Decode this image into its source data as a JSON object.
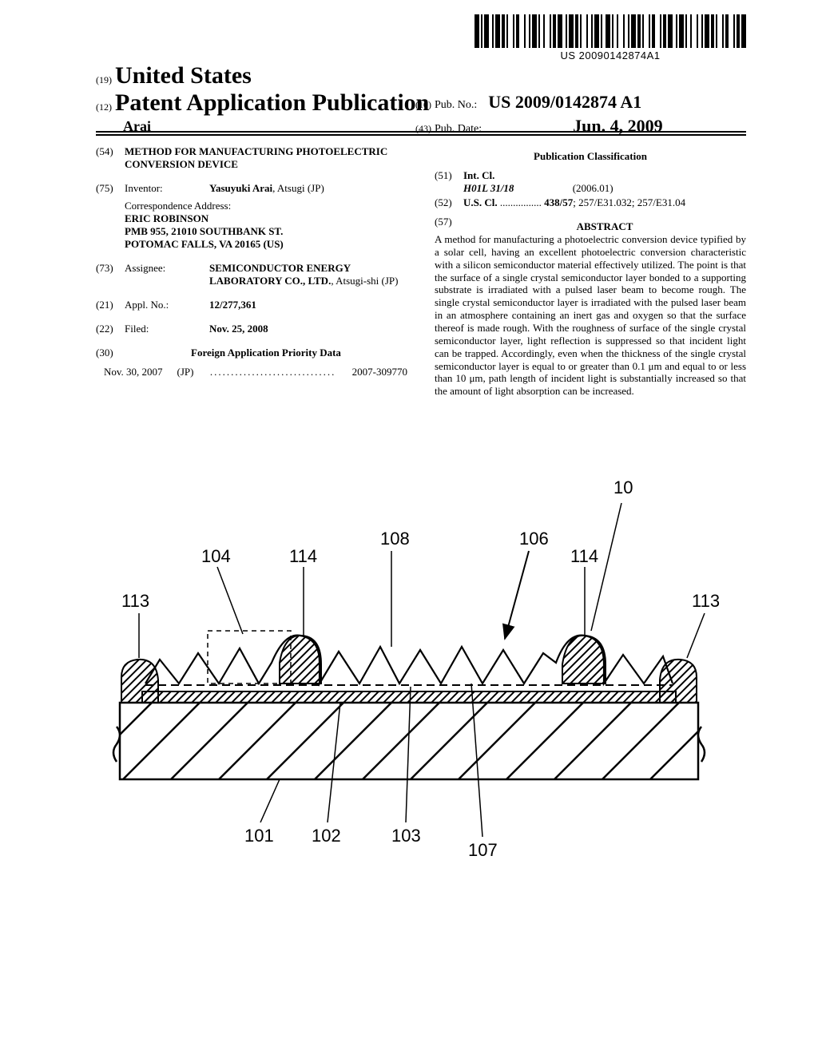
{
  "barcode": {
    "text": "US 20090142874A1",
    "pattern": [
      3,
      1,
      1,
      1,
      3,
      2,
      1,
      1,
      3,
      1,
      2,
      1,
      1,
      3,
      1,
      1,
      2,
      3,
      1,
      2,
      1,
      1,
      3,
      1,
      1,
      2,
      1,
      3,
      1,
      1,
      2,
      1,
      3,
      2,
      1,
      1,
      3,
      1,
      2,
      1,
      1,
      3,
      1,
      2,
      1,
      1,
      3,
      1,
      1,
      2,
      3,
      1,
      1,
      2,
      1,
      3,
      1,
      2,
      1,
      1,
      3,
      1,
      2,
      1,
      1,
      3,
      1,
      1,
      2,
      3,
      1,
      1,
      2,
      1,
      3,
      2,
      1,
      1,
      3,
      1,
      1,
      2,
      1,
      3,
      1,
      2,
      1,
      1,
      3,
      1,
      2,
      1,
      1,
      3,
      1,
      1,
      2,
      3,
      1,
      1,
      2,
      1,
      3
    ]
  },
  "header": {
    "code19": "(19)",
    "country": "United States",
    "code12": "(12)",
    "pub_type": "Patent Application Publication",
    "authors": "Arai",
    "code10": "(10)",
    "pubno_label": "Pub. No.:",
    "pubno": "US 2009/0142874 A1",
    "code43": "(43)",
    "pubdate_label": "Pub. Date:",
    "pubdate": "Jun. 4, 2009"
  },
  "left_col": {
    "code54": "(54)",
    "title": "METHOD FOR MANUFACTURING PHOTOELECTRIC CONVERSION DEVICE",
    "code75": "(75)",
    "inventor_label": "Inventor:",
    "inventor": "Yasuyuki Arai",
    "inventor_loc": ", Atsugi (JP)",
    "corr_label": "Correspondence Address:",
    "corr_lines": [
      "ERIC ROBINSON",
      "PMB 955, 21010 SOUTHBANK ST.",
      "POTOMAC FALLS, VA 20165 (US)"
    ],
    "code73": "(73)",
    "assignee_label": "Assignee:",
    "assignee": "SEMICONDUCTOR ENERGY LABORATORY CO., LTD.",
    "assignee_loc": ", Atsugi-shi (JP)",
    "code21": "(21)",
    "applno_label": "Appl. No.:",
    "applno": "12/277,361",
    "code22": "(22)",
    "filed_label": "Filed:",
    "filed": "Nov. 25, 2008",
    "code30": "(30)",
    "foreign_head": "Foreign Application Priority Data",
    "foreign_date": "Nov. 30, 2007",
    "foreign_cc": "(JP)",
    "foreign_no": "2007-309770"
  },
  "right_col": {
    "pubclass_head": "Publication Classification",
    "code51": "(51)",
    "intcl_label": "Int. Cl.",
    "intcl_code": "H01L 31/18",
    "intcl_date": "(2006.01)",
    "code52": "(52)",
    "uscl_label": "U.S. Cl.",
    "uscl_vals": "438/57; 257/E31.032; 257/E31.04",
    "code57": "(57)",
    "abstract_head": "ABSTRACT",
    "abstract_body": "A method for manufacturing a photoelectric conversion device typified by a solar cell, having an excellent photoelectric conversion characteristic with a silicon semiconductor material effectively utilized. The point is that the surface of a single crystal semiconductor layer bonded to a supporting substrate is irradiated with a pulsed laser beam to become rough. The single crystal semiconductor layer is irradiated with the pulsed laser beam in an atmosphere containing an inert gas and oxygen so that the surface thereof is made rough. With the roughness of surface of the single crystal semiconductor layer, light reflection is suppressed so that incident light can be trapped. Accordingly, even when the thickness of the single crystal semiconductor layer is equal to or greater than 0.1 μm and equal to or less than 10 μm, path length of incident light is substantially increased so that the amount of light absorption can be increased."
  },
  "figure": {
    "labels": {
      "n10": "10",
      "n101": "101",
      "n102": "102",
      "n103": "103",
      "n104": "104",
      "n106": "106",
      "n107": "107",
      "n108": "108",
      "n113L": "113",
      "n113R": "113",
      "n114L": "114",
      "n114R": "114"
    },
    "colors": {
      "stroke": "#000000",
      "fill_bg": "#ffffff"
    }
  }
}
